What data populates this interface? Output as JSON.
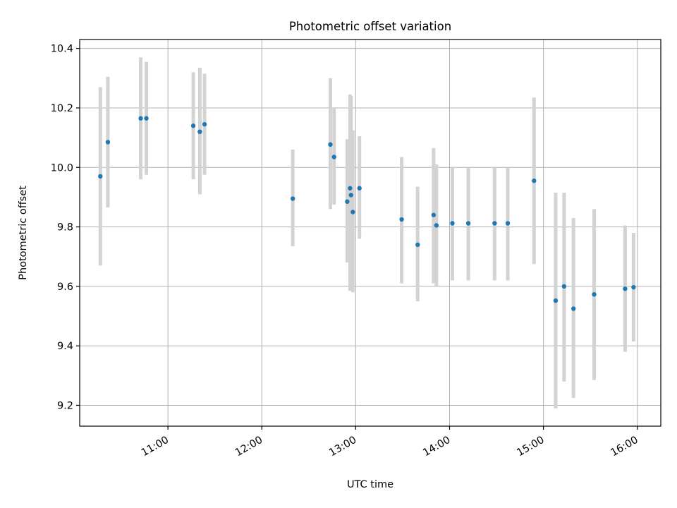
{
  "chart_data": {
    "type": "scatter",
    "title": "Photometric offset variation",
    "xlabel": "UTC time",
    "ylabel": "Photometric offset",
    "xlim_hours": [
      10.06,
      16.25
    ],
    "ylim": [
      9.13,
      10.43
    ],
    "xticks": [
      {
        "hour": 11,
        "label": "11:00"
      },
      {
        "hour": 12,
        "label": "12:00"
      },
      {
        "hour": 13,
        "label": "13:00"
      },
      {
        "hour": 14,
        "label": "14:00"
      },
      {
        "hour": 15,
        "label": "15:00"
      },
      {
        "hour": 16,
        "label": "16:00"
      }
    ],
    "yticks": [
      {
        "value": 9.2,
        "label": "9.2"
      },
      {
        "value": 9.4,
        "label": "9.4"
      },
      {
        "value": 9.6,
        "label": "9.6"
      },
      {
        "value": 9.8,
        "label": "9.8"
      },
      {
        "value": 10.0,
        "label": "10.0"
      },
      {
        "value": 10.2,
        "label": "10.2"
      },
      {
        "value": 10.4,
        "label": "10.4"
      }
    ],
    "grid": true,
    "colors": {
      "point": "#1f77b4",
      "errorbar": "#d3d3d3",
      "grid": "#b0b0b0"
    },
    "points": [
      {
        "t": 10.28,
        "y": 9.97,
        "lo": 9.67,
        "hi": 10.27
      },
      {
        "t": 10.36,
        "y": 10.085,
        "lo": 9.865,
        "hi": 10.305
      },
      {
        "t": 10.71,
        "y": 10.165,
        "lo": 9.96,
        "hi": 10.37
      },
      {
        "t": 10.77,
        "y": 10.165,
        "lo": 9.975,
        "hi": 10.355
      },
      {
        "t": 11.27,
        "y": 10.14,
        "lo": 9.96,
        "hi": 10.32
      },
      {
        "t": 11.34,
        "y": 10.12,
        "lo": 9.91,
        "hi": 10.335
      },
      {
        "t": 11.39,
        "y": 10.145,
        "lo": 9.975,
        "hi": 10.315
      },
      {
        "t": 12.33,
        "y": 9.895,
        "lo": 9.735,
        "hi": 10.06
      },
      {
        "t": 12.73,
        "y": 10.077,
        "lo": 9.86,
        "hi": 10.3
      },
      {
        "t": 12.77,
        "y": 10.035,
        "lo": 9.875,
        "hi": 10.2
      },
      {
        "t": 12.91,
        "y": 9.885,
        "lo": 9.68,
        "hi": 10.095
      },
      {
        "t": 12.94,
        "y": 9.93,
        "lo": 9.585,
        "hi": 10.245
      },
      {
        "t": 12.95,
        "y": 9.907,
        "lo": 9.6,
        "hi": 10.24
      },
      {
        "t": 12.97,
        "y": 9.85,
        "lo": 9.58,
        "hi": 10.125
      },
      {
        "t": 13.04,
        "y": 9.93,
        "lo": 9.76,
        "hi": 10.105
      },
      {
        "t": 13.49,
        "y": 9.825,
        "lo": 9.61,
        "hi": 10.035
      },
      {
        "t": 13.66,
        "y": 9.74,
        "lo": 9.55,
        "hi": 9.935
      },
      {
        "t": 13.83,
        "y": 9.84,
        "lo": 9.61,
        "hi": 10.065
      },
      {
        "t": 13.86,
        "y": 9.805,
        "lo": 9.6,
        "hi": 10.01
      },
      {
        "t": 14.03,
        "y": 9.812,
        "lo": 9.62,
        "hi": 10.0
      },
      {
        "t": 14.2,
        "y": 9.812,
        "lo": 9.62,
        "hi": 10.0
      },
      {
        "t": 14.48,
        "y": 9.812,
        "lo": 9.62,
        "hi": 10.0
      },
      {
        "t": 14.62,
        "y": 9.812,
        "lo": 9.62,
        "hi": 10.0
      },
      {
        "t": 14.9,
        "y": 9.955,
        "lo": 9.675,
        "hi": 10.235
      },
      {
        "t": 15.13,
        "y": 9.552,
        "lo": 9.19,
        "hi": 9.915
      },
      {
        "t": 15.22,
        "y": 9.6,
        "lo": 9.28,
        "hi": 9.915
      },
      {
        "t": 15.32,
        "y": 9.525,
        "lo": 9.225,
        "hi": 9.83
      },
      {
        "t": 15.54,
        "y": 9.573,
        "lo": 9.285,
        "hi": 9.86
      },
      {
        "t": 15.87,
        "y": 9.592,
        "lo": 9.38,
        "hi": 9.805
      },
      {
        "t": 15.96,
        "y": 9.597,
        "lo": 9.415,
        "hi": 9.78
      }
    ]
  }
}
